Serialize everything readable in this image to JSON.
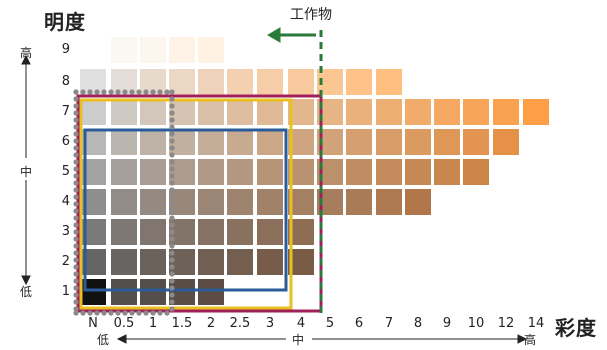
{
  "titles": {
    "value_axis": "明度",
    "chroma_axis": "彩度",
    "workpiece": "工作物"
  },
  "value_axis": {
    "high": "高",
    "mid": "中",
    "low": "低",
    "ticks": [
      "9",
      "8",
      "7",
      "6",
      "5",
      "4",
      "3",
      "2",
      "1"
    ]
  },
  "chroma_axis": {
    "low": "低",
    "mid": "中",
    "high": "高",
    "ticks": [
      "N",
      "0.5",
      "1",
      "1.5",
      "2",
      "2.5",
      "3",
      "4",
      "5",
      "6",
      "7",
      "8",
      "9",
      "10",
      "12",
      "14"
    ]
  },
  "colors": {
    "magenta_frame": "#a0205a",
    "yellow_frame": "#e8c020",
    "blue_frame": "#2a5c9a",
    "workpiece_line": "#2a7a3a",
    "dotted_points": "#8a8a8a"
  }
}
